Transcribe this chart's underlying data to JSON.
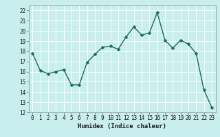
{
  "x": [
    0,
    1,
    2,
    3,
    4,
    5,
    6,
    7,
    8,
    9,
    10,
    11,
    12,
    13,
    14,
    15,
    16,
    17,
    18,
    19,
    20,
    21,
    22,
    23
  ],
  "y": [
    17.8,
    16.1,
    15.8,
    16.0,
    16.2,
    14.7,
    14.7,
    16.9,
    17.7,
    18.4,
    18.5,
    18.2,
    19.4,
    20.4,
    19.6,
    19.8,
    21.8,
    19.1,
    18.3,
    19.1,
    18.7,
    17.8,
    14.2,
    12.5
  ],
  "line_color": "#1a6b5a",
  "marker": "D",
  "marker_size": 2.5,
  "bg_color": "#c8eeee",
  "grid_color": "#ffffff",
  "xlabel": "Humidex (Indice chaleur)",
  "xlim": [
    -0.5,
    23.5
  ],
  "ylim": [
    12,
    22.5
  ],
  "yticks": [
    12,
    13,
    14,
    15,
    16,
    17,
    18,
    19,
    20,
    21,
    22
  ],
  "xticks": [
    0,
    1,
    2,
    3,
    4,
    5,
    6,
    7,
    8,
    9,
    10,
    11,
    12,
    13,
    14,
    15,
    16,
    17,
    18,
    19,
    20,
    21,
    22,
    23
  ],
  "tick_label_fontsize": 5.5,
  "xlabel_fontsize": 6.5,
  "line_width": 1.0
}
